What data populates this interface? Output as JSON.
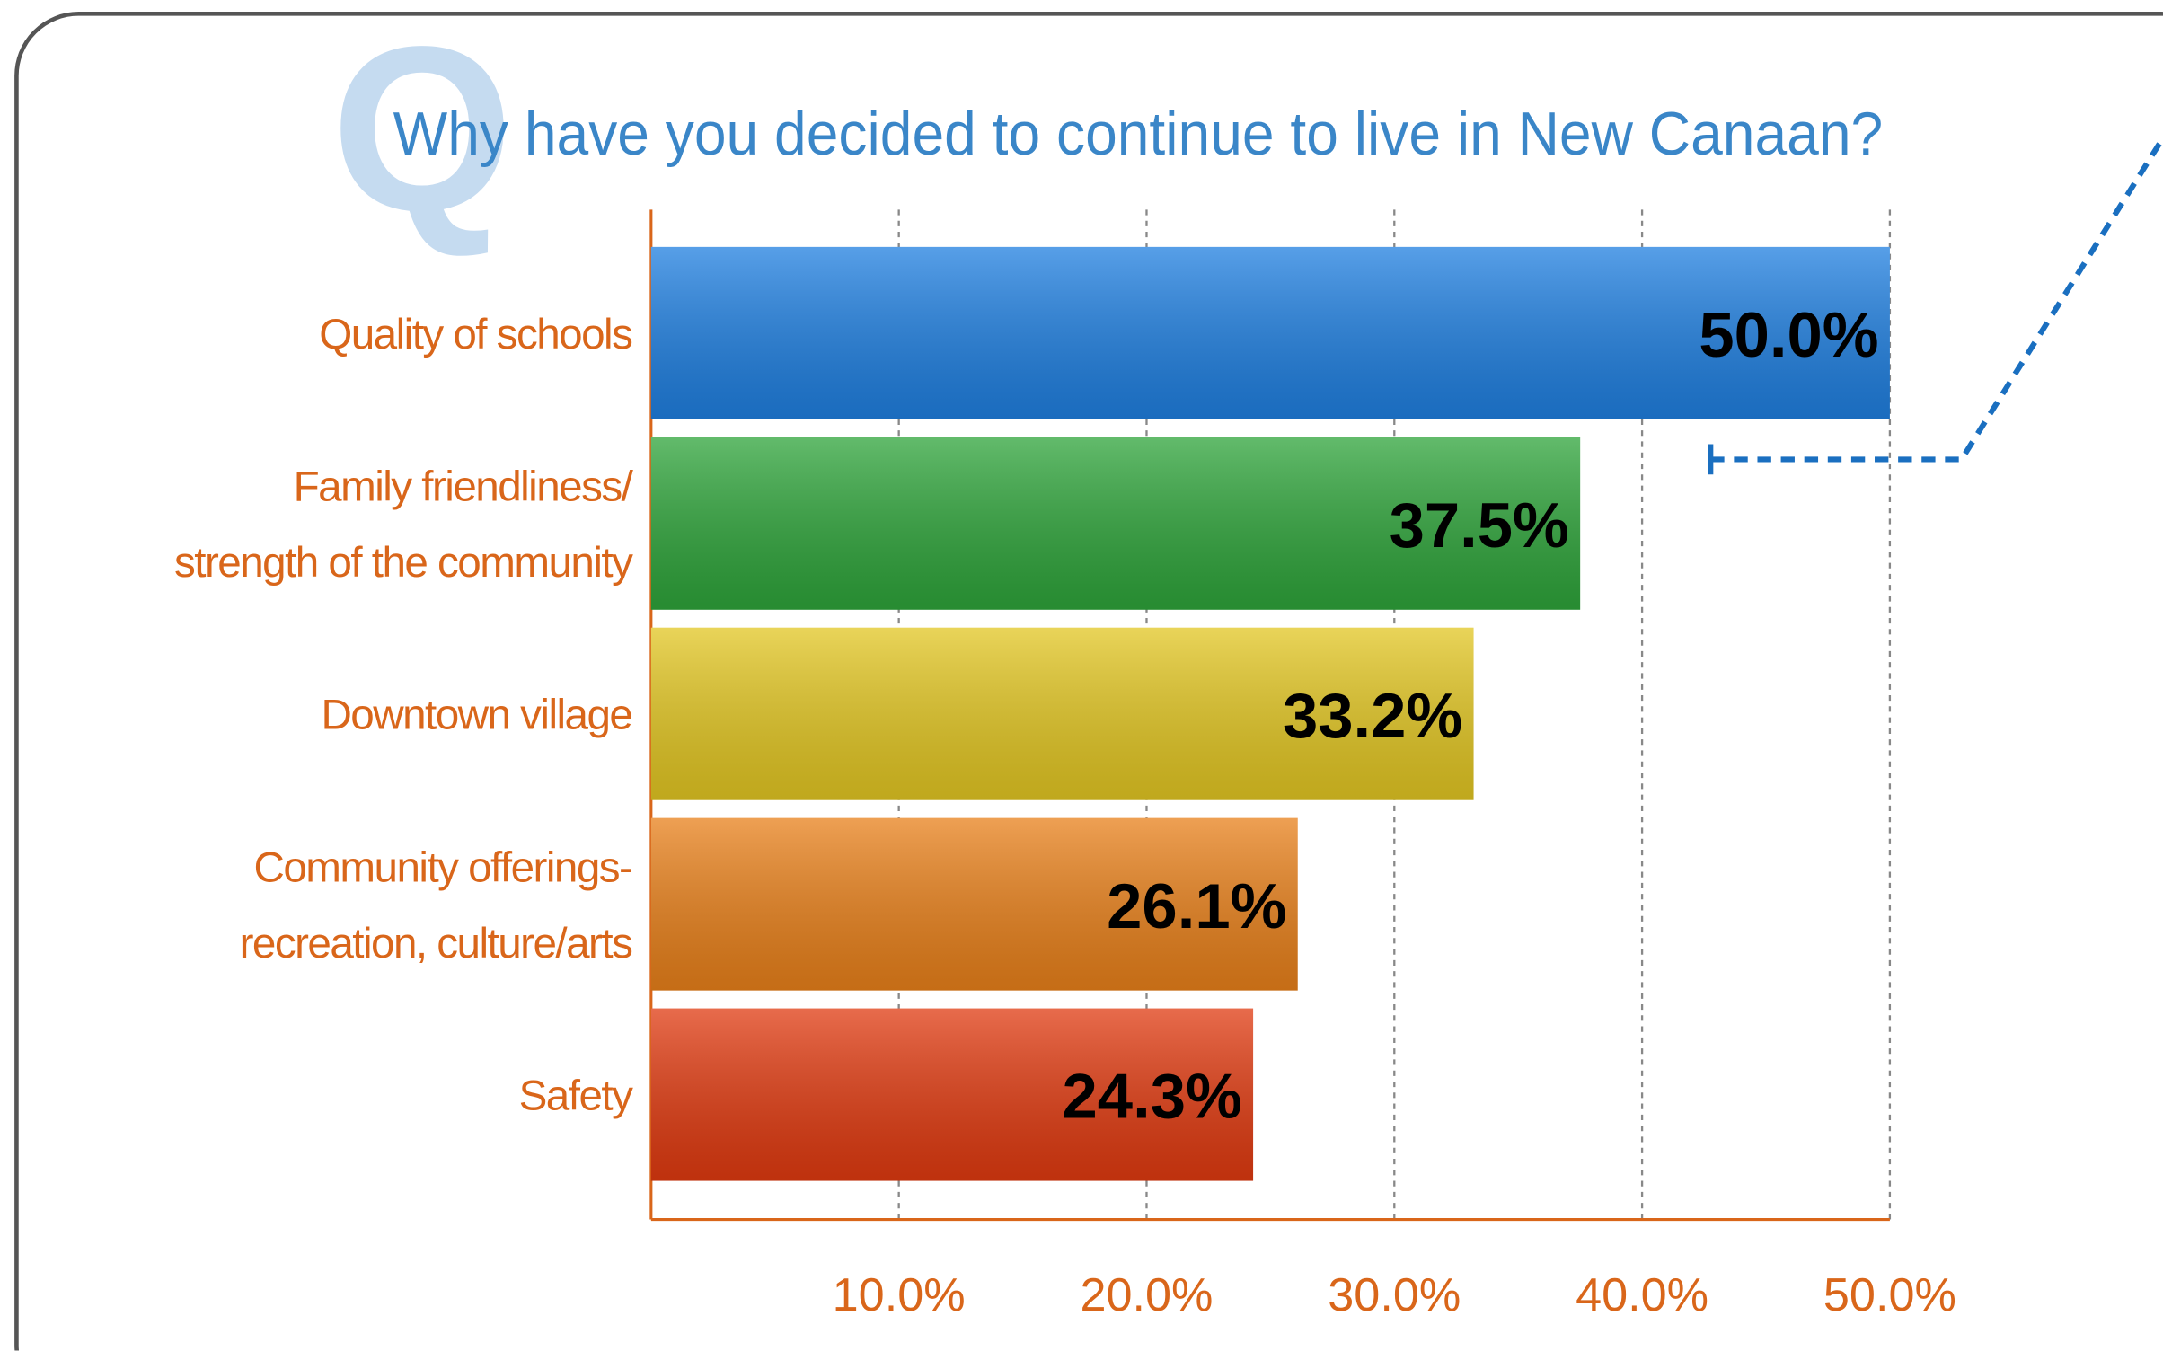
{
  "chart_data": {
    "type": "bar",
    "orientation": "horizontal",
    "badge": "Q",
    "title": "Why have you decided to continue to live in New Canaan?",
    "categories": [
      "Quality of schools",
      "Family friendliness/\nstrength of the community",
      "Downtown village",
      "Community offerings-\nrecreation, culture/arts",
      "Safety"
    ],
    "values": [
      50.0,
      37.5,
      33.2,
      26.1,
      24.3
    ],
    "value_labels": [
      "50.0%",
      "37.5%",
      "33.2%",
      "26.1%",
      "24.3%"
    ],
    "colors": [
      "#1f7fe0",
      "#2ea43a",
      "#e2c622",
      "#e8801a",
      "#e03a10"
    ],
    "xlim": [
      0,
      50
    ],
    "xticks": [
      {
        "value": 10,
        "label": "10.0%"
      },
      {
        "value": 20,
        "label": "20.0%"
      },
      {
        "value": 30,
        "label": "30.0%"
      },
      {
        "value": 40,
        "label": "40.0%"
      },
      {
        "value": 50,
        "label": "50.0%"
      }
    ],
    "grid": true
  }
}
